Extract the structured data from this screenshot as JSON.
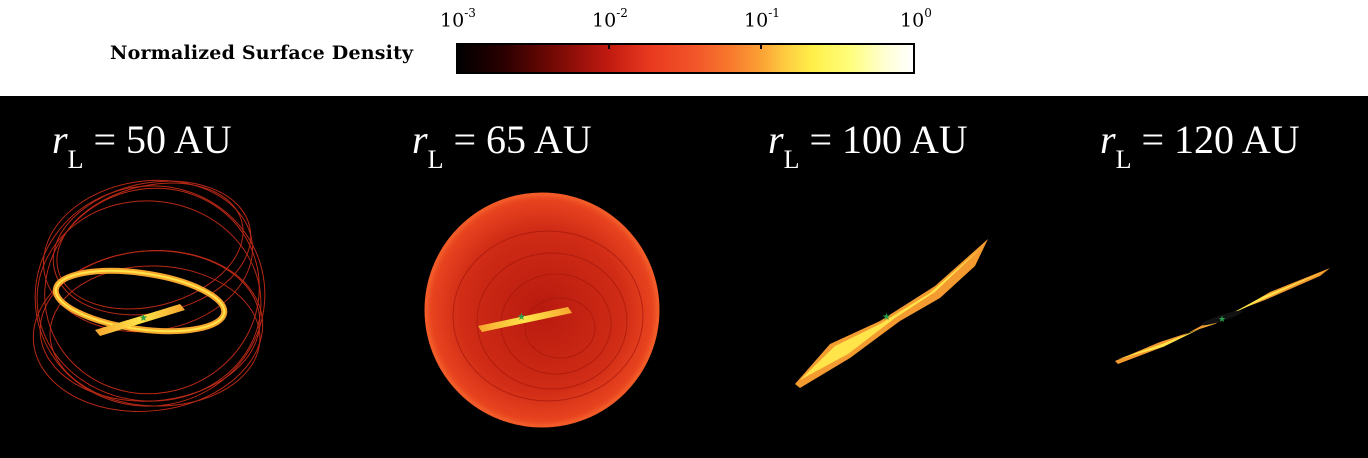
{
  "colorbar": {
    "label": "Normalized Surface Density",
    "ticks": [
      {
        "base": "10",
        "exp": "-3"
      },
      {
        "base": "10",
        "exp": "-2"
      },
      {
        "base": "10",
        "exp": "-1"
      },
      {
        "base": "10",
        "exp": "0"
      }
    ],
    "colors": [
      "#000000",
      "#c01a10",
      "#f77a2d",
      "#fdcc40",
      "#ffef4a",
      "#ffffff"
    ]
  },
  "panels": [
    {
      "var": "r",
      "sub": "L",
      "value": "= 50 AU"
    },
    {
      "var": "r",
      "sub": "L",
      "value": "= 65 AU"
    },
    {
      "var": "r",
      "sub": "L",
      "value": "= 100 AU"
    },
    {
      "var": "r",
      "sub": "L",
      "value": "= 120 AU"
    }
  ],
  "star_icon": "star-icon",
  "background": "#000000"
}
